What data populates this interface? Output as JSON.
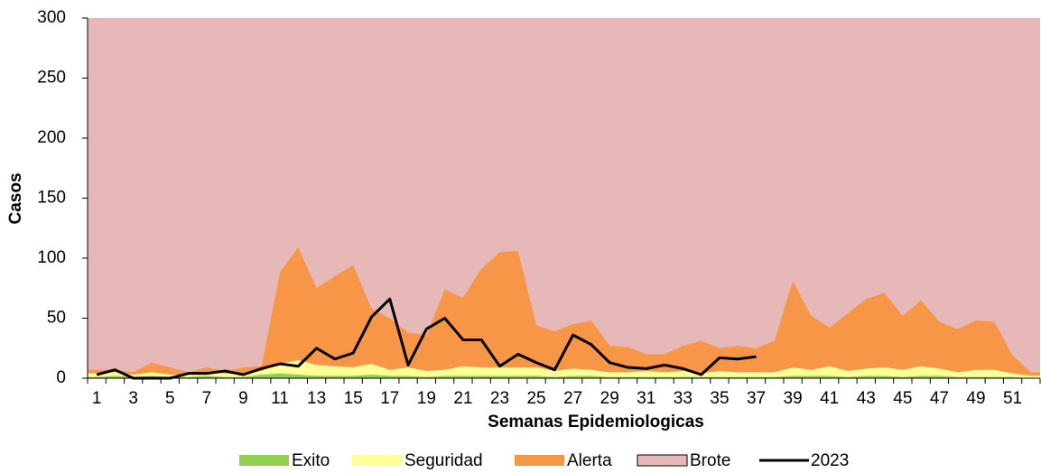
{
  "chart_data": {
    "type": "area",
    "x_label": "Semanas Epidemiologicas",
    "y_label": "Casos",
    "categories": [
      1,
      null,
      3,
      null,
      5,
      null,
      7,
      null,
      9,
      null,
      11,
      null,
      13,
      null,
      15,
      null,
      17,
      null,
      19,
      null,
      21,
      null,
      23,
      null,
      25,
      null,
      27,
      null,
      29,
      null,
      31,
      null,
      33,
      null,
      35,
      null,
      37,
      null,
      39,
      null,
      41,
      null,
      43,
      null,
      45,
      null,
      47,
      null,
      49,
      null,
      51,
      null
    ],
    "ylim": [
      0,
      300
    ],
    "yticks": [
      0,
      50,
      100,
      150,
      200,
      250,
      300
    ],
    "grid": false,
    "legend": "bottom",
    "series": [
      {
        "name": "Brote",
        "type": "area",
        "color": "#e6b8b7",
        "border": "#000000",
        "values": [
          300,
          300,
          300,
          300,
          300,
          300,
          300,
          300,
          300,
          300,
          300,
          300,
          300,
          300,
          300,
          300,
          300,
          300,
          300,
          300,
          300,
          300,
          300,
          300,
          300,
          300,
          300,
          300,
          300,
          300,
          300,
          300,
          300,
          300,
          300,
          300,
          300,
          300,
          300,
          300,
          300,
          300,
          300,
          300,
          300,
          300,
          300,
          300,
          300,
          300,
          300,
          300
        ]
      },
      {
        "name": "Alerta",
        "type": "area",
        "color": "#f79646",
        "values": [
          7,
          7,
          5,
          13,
          9,
          5,
          9,
          6,
          9,
          10,
          88,
          109,
          75,
          85,
          94,
          58,
          50,
          38,
          36,
          74,
          67,
          91,
          105,
          106,
          44,
          39,
          45,
          48,
          27,
          26,
          20,
          20,
          27,
          31,
          25,
          27,
          25,
          31,
          81,
          52,
          42,
          54,
          66,
          71,
          52,
          65,
          47,
          41,
          48,
          47,
          19,
          5
        ]
      },
      {
        "name": "Seguridad",
        "type": "area",
        "color": "#ffff99",
        "values": [
          4,
          5,
          3,
          5,
          3,
          3,
          5,
          4,
          4,
          6,
          12,
          15,
          11,
          10,
          9,
          12,
          7,
          9,
          6,
          7,
          10,
          9,
          9,
          9,
          9,
          6,
          8,
          7,
          5,
          5,
          6,
          5,
          6,
          4,
          6,
          5,
          5,
          5,
          9,
          7,
          10,
          6,
          8,
          9,
          7,
          10,
          8,
          5,
          7,
          7,
          4,
          2
        ]
      },
      {
        "name": "Exito",
        "type": "area",
        "color": "#92d050",
        "values": [
          1,
          2,
          1,
          2,
          1,
          1,
          2,
          1,
          1,
          3,
          4,
          3,
          2,
          2,
          2,
          3,
          2,
          2,
          1,
          2,
          2,
          2,
          2,
          2,
          2,
          1,
          2,
          2,
          1,
          1,
          1,
          1,
          1,
          1,
          1,
          1,
          1,
          1,
          2,
          2,
          2,
          1,
          2,
          2,
          1,
          2,
          2,
          1,
          1,
          1,
          1,
          0
        ]
      },
      {
        "name": "2023",
        "type": "line",
        "color": "#000000",
        "values": [
          3,
          7,
          0,
          0,
          0,
          4,
          4,
          6,
          3,
          8,
          12,
          10,
          25,
          16,
          21,
          51,
          66,
          11,
          41,
          50,
          32,
          32,
          10,
          20,
          13,
          7,
          36,
          28,
          13,
          9,
          8,
          11,
          8,
          3,
          17,
          16,
          18,
          null,
          null,
          null,
          null,
          null,
          null,
          null,
          null,
          null,
          null,
          null,
          null,
          null,
          null,
          null
        ]
      }
    ]
  }
}
